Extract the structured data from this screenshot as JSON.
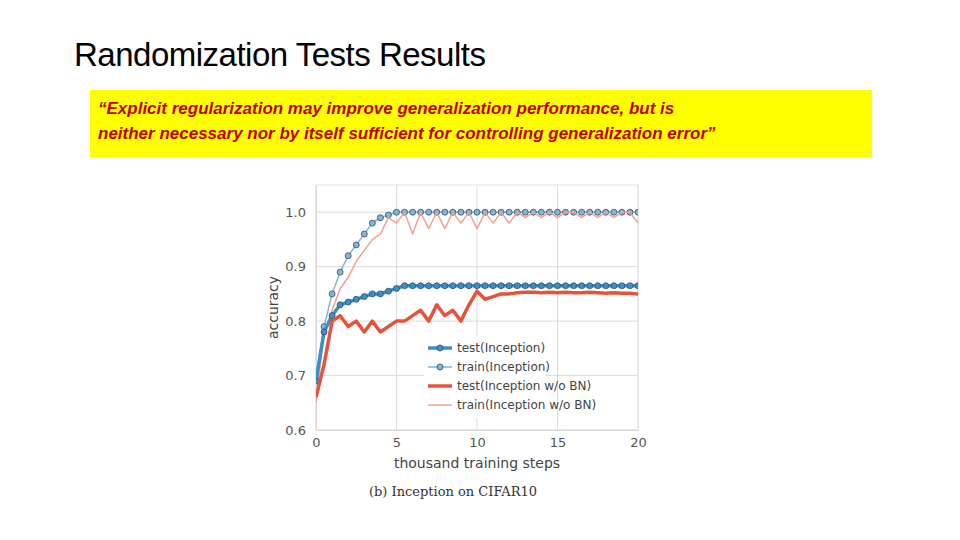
{
  "header": {
    "title": "Randomization Tests Results",
    "quote": [
      "“Explicit regularization may improve generalization performance, but is",
      "neither necessary nor by itself sufficient for controlling generalization error”"
    ]
  },
  "chart_data": {
    "type": "line",
    "title": "(b) Inception on CIFAR10",
    "xlabel": "thousand training steps",
    "ylabel": "accuracy",
    "x": [
      0,
      0.5,
      1,
      1.5,
      2,
      2.5,
      3,
      3.5,
      4,
      4.5,
      5,
      5.5,
      6,
      6.5,
      7,
      7.5,
      8,
      8.5,
      9,
      9.5,
      10,
      10.5,
      11,
      11.5,
      12,
      12.5,
      13,
      13.5,
      14,
      14.5,
      15,
      15.5,
      16,
      16.5,
      17,
      17.5,
      18,
      18.5,
      19,
      19.5,
      20
    ],
    "xlim": [
      0,
      20
    ],
    "xticks": [
      0,
      5,
      10,
      15,
      20
    ],
    "ylim": [
      0.6,
      1.05
    ],
    "yticks": [
      0.6,
      0.7,
      0.8,
      0.9,
      {
        "value": 1.0,
        "label": "1.0"
      }
    ],
    "grid": true,
    "legend": "lower right",
    "series": [
      {
        "name": "test(Inception)",
        "color": "#3a8fc8",
        "marker": "circle",
        "line_style": "thick",
        "values": [
          0.69,
          0.78,
          0.81,
          0.83,
          0.835,
          0.84,
          0.845,
          0.85,
          0.85,
          0.855,
          0.86,
          0.865,
          0.865,
          0.865,
          0.865,
          0.865,
          0.865,
          0.865,
          0.865,
          0.865,
          0.865,
          0.865,
          0.865,
          0.865,
          0.865,
          0.865,
          0.865,
          0.865,
          0.865,
          0.865,
          0.865,
          0.865,
          0.865,
          0.865,
          0.865,
          0.865,
          0.865,
          0.865,
          0.865,
          0.865,
          0.865
        ]
      },
      {
        "name": "train(Inception)",
        "color": "#7fb6d9",
        "marker": "circle",
        "line_style": "thin",
        "values": [
          0.7,
          0.79,
          0.85,
          0.89,
          0.92,
          0.94,
          0.96,
          0.98,
          0.99,
          0.995,
          1.0,
          1.0,
          1.0,
          1.0,
          1.0,
          1.0,
          1.0,
          1.0,
          1.0,
          1.0,
          1.0,
          1.0,
          1.0,
          1.0,
          1.0,
          1.0,
          1.0,
          1.0,
          1.0,
          1.0,
          1.0,
          1.0,
          1.0,
          1.0,
          1.0,
          1.0,
          1.0,
          1.0,
          1.0,
          1.0,
          1.0
        ]
      },
      {
        "name": "test(Inception w/o BN)",
        "color": "#e8523a",
        "marker": "none",
        "line_style": "thick",
        "values": [
          0.66,
          0.72,
          0.8,
          0.81,
          0.79,
          0.8,
          0.78,
          0.8,
          0.78,
          0.79,
          0.8,
          0.8,
          0.81,
          0.82,
          0.8,
          0.83,
          0.81,
          0.82,
          0.8,
          0.83,
          0.855,
          0.84,
          0.845,
          0.85,
          0.85,
          0.852,
          0.853,
          0.853,
          0.852,
          0.853,
          0.852,
          0.853,
          0.852,
          0.852,
          0.853,
          0.852,
          0.851,
          0.852,
          0.851,
          0.851,
          0.85
        ]
      },
      {
        "name": "train(Inception w/o BN)",
        "color": "#f2a08f",
        "marker": "none",
        "line_style": "thin",
        "values": [
          0.65,
          0.78,
          0.82,
          0.86,
          0.88,
          0.91,
          0.93,
          0.95,
          0.96,
          0.99,
          0.98,
          1.0,
          0.96,
          1.0,
          0.97,
          1.0,
          0.97,
          1.0,
          0.98,
          1.0,
          0.97,
          1.0,
          0.98,
          1.0,
          0.98,
          1.0,
          0.99,
          1.0,
          0.99,
          1.0,
          0.99,
          1.0,
          1.0,
          0.99,
          1.0,
          0.99,
          1.0,
          0.99,
          1.0,
          1.0,
          0.98
        ]
      }
    ]
  }
}
